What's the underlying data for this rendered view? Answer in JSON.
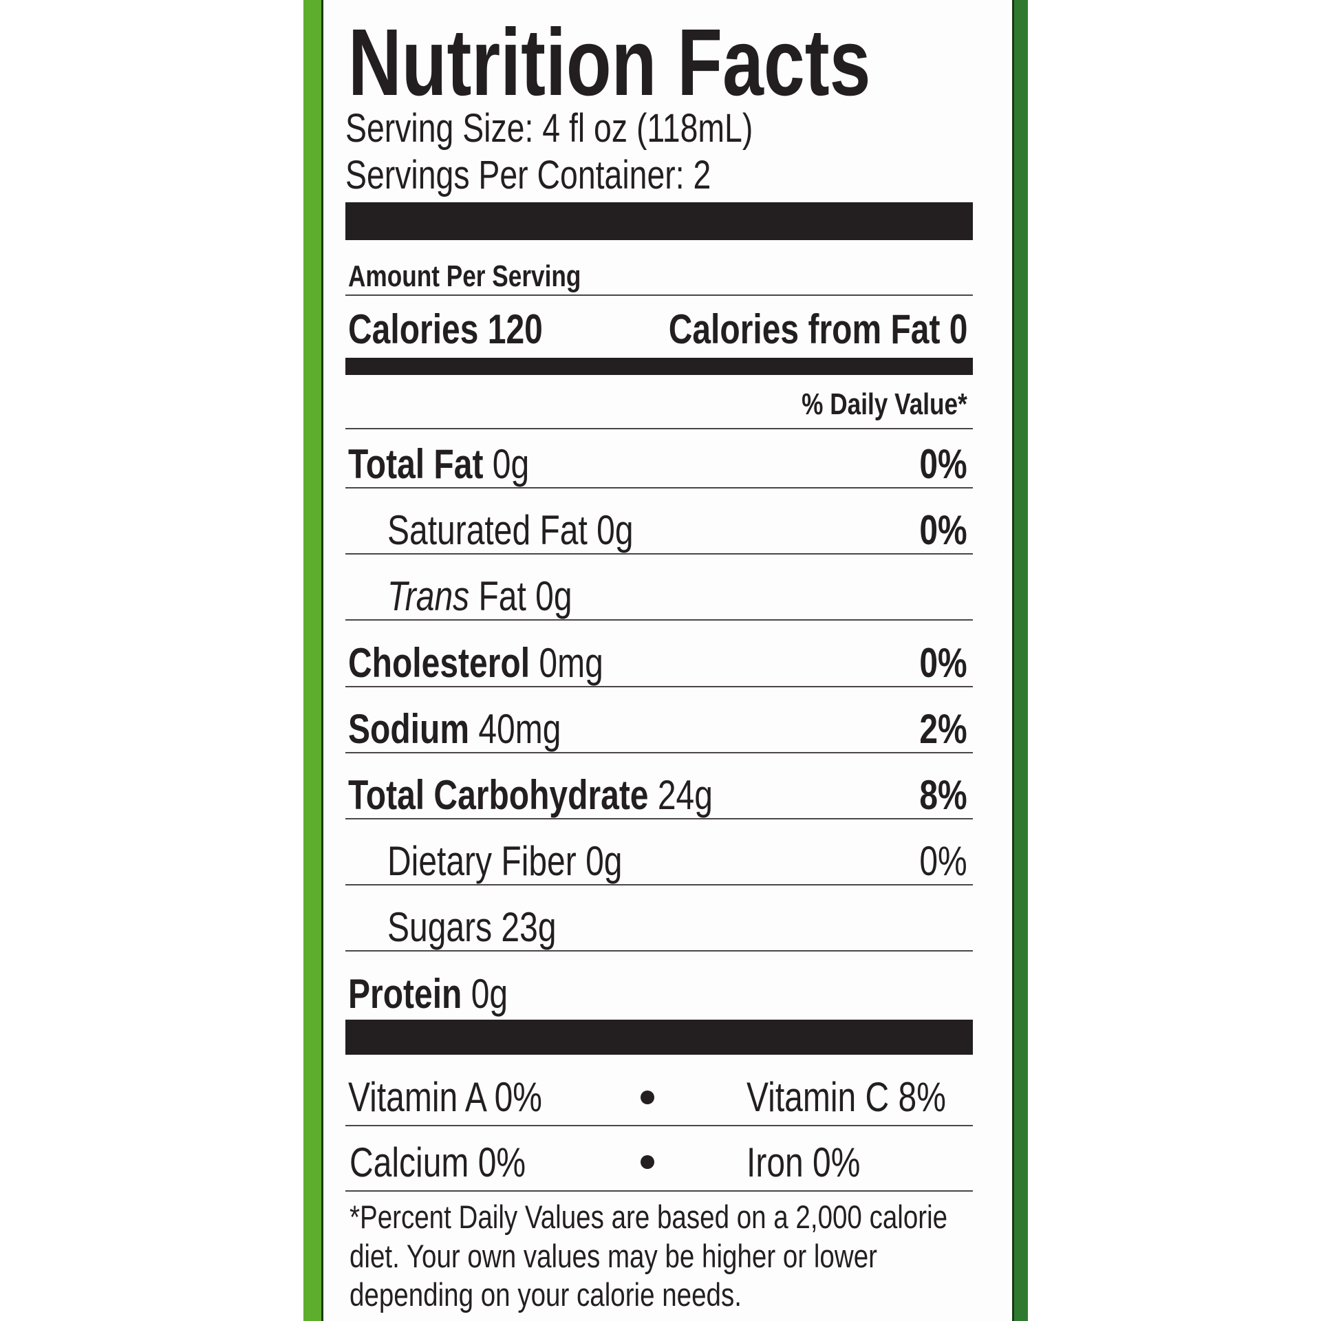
{
  "title": "Nutrition Facts",
  "serving_size": "Serving Size: 4 fl oz (118mL)",
  "servings_per_container": "Servings Per Container: 2",
  "amount_per_serving": "Amount Per Serving",
  "calories": "Calories 120",
  "calories_from_fat": "Calories from Fat 0",
  "daily_value_header": "% Daily Value*",
  "nutrients": [
    {
      "label": "Total Fat",
      "amount": " 0g",
      "dv": "0%",
      "bold": true,
      "indent": false
    },
    {
      "label": "Saturated Fat 0g",
      "amount": "",
      "dv": "0%",
      "bold": false,
      "indent": true
    },
    {
      "label": "Trans",
      "amount": " Fat 0g",
      "dv": "",
      "bold": false,
      "italic": true,
      "indent": true
    },
    {
      "label": "Cholesterol",
      "amount": " 0mg",
      "dv": "0%",
      "bold": true,
      "indent": false
    },
    {
      "label": "Sodium",
      "amount": " 40mg",
      "dv": "2%",
      "bold": true,
      "indent": false
    },
    {
      "label": "Total Carbohydrate",
      "amount": " 24g",
      "dv": "8%",
      "bold": true,
      "indent": false
    },
    {
      "label": "Dietary Fiber 0g",
      "amount": "",
      "dv": "0%",
      "bold": false,
      "dv_regular": true,
      "indent": true
    },
    {
      "label": "Sugars 23g",
      "amount": "",
      "dv": "",
      "bold": false,
      "indent": true
    },
    {
      "label": "Protein",
      "amount": " 0g",
      "dv": "",
      "bold": true,
      "indent": false
    }
  ],
  "vitamins": {
    "vitamin_a": "Vitamin A 0%",
    "vitamin_c": "Vitamin C 8%",
    "calcium": "Calcium 0%",
    "iron": "Iron 0%"
  },
  "footnote": [
    "*Percent Daily Values are based on a 2,000 calorie",
    "diet. Your own values may be higher or lower",
    "depending on your calorie needs."
  ],
  "colors": {
    "border_green": "#5cae2c",
    "dark_green": "#2f7a2f",
    "ink": "#231f20"
  }
}
